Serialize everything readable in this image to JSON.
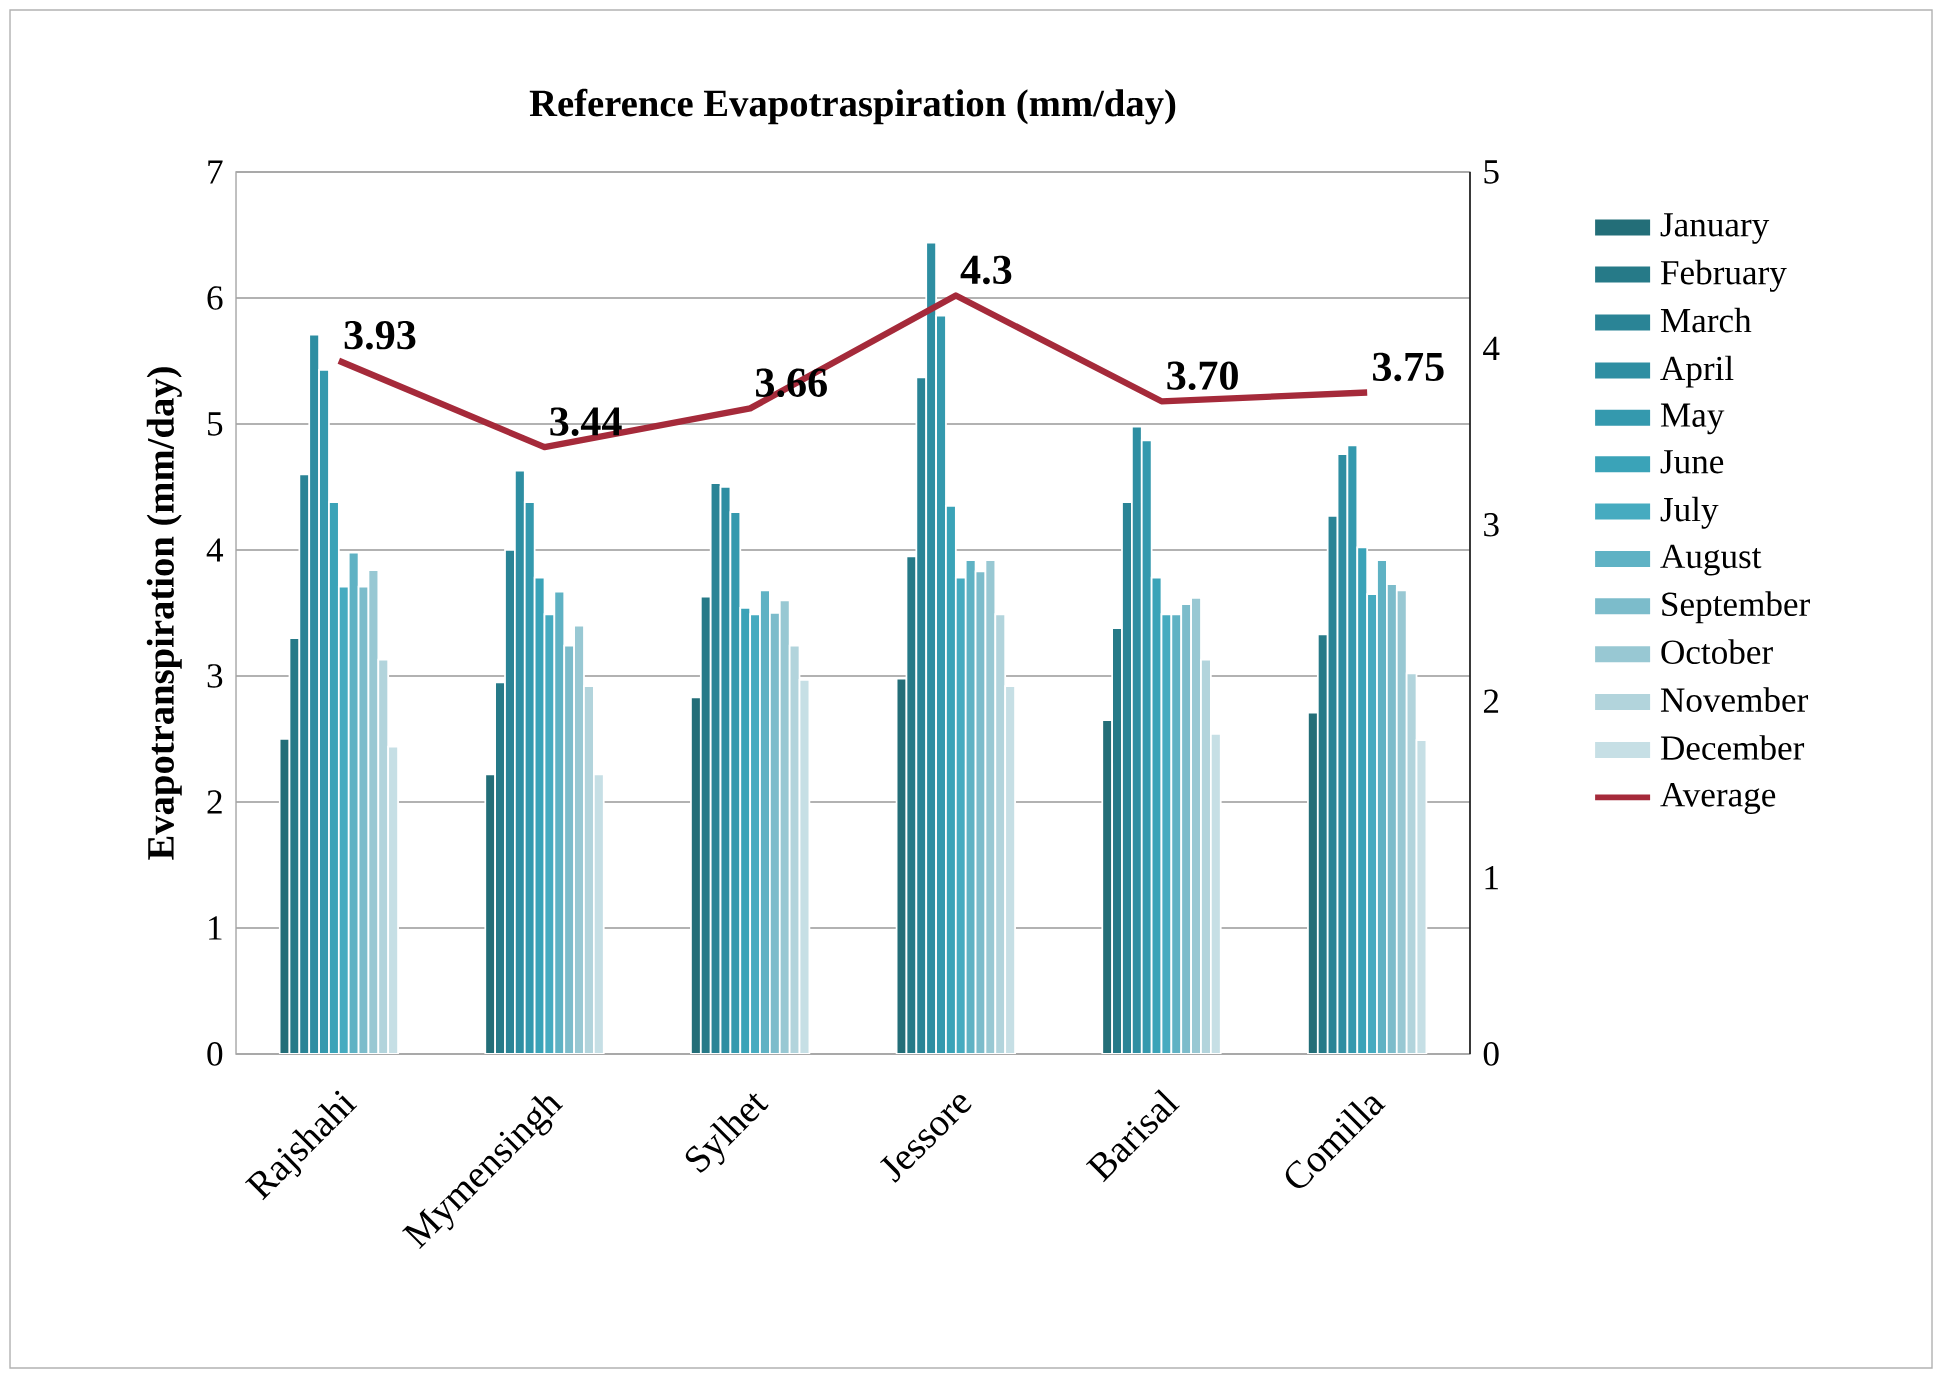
{
  "chart_data": {
    "type": "bar",
    "title": "Reference Evapotraspiration (mm/day)",
    "ylabel": "Evapotranspiration (mm/day)",
    "categories": [
      "Rajshahi",
      "Mymensingh",
      "Sylhet",
      "Jessore",
      "Barisal",
      "Comilla"
    ],
    "ylim": [
      0,
      7
    ],
    "yticks": [
      0,
      1,
      2,
      3,
      4,
      5,
      6,
      7
    ],
    "y2lim": [
      0,
      5
    ],
    "y2ticks": [
      0,
      1,
      2,
      3,
      4,
      5
    ],
    "grid": "y",
    "legend": "right",
    "series": [
      {
        "name": "January",
        "color": "#236e78",
        "values": [
          2.5,
          2.22,
          2.83,
          2.98,
          2.65,
          2.71
        ]
      },
      {
        "name": "February",
        "color": "#267a88",
        "values": [
          3.3,
          2.95,
          3.63,
          3.95,
          3.38,
          3.33
        ]
      },
      {
        "name": "March",
        "color": "#2a8496",
        "values": [
          4.6,
          4.0,
          4.53,
          5.37,
          4.38,
          4.27
        ]
      },
      {
        "name": "April",
        "color": "#2e8ea2",
        "values": [
          5.71,
          4.63,
          4.5,
          6.44,
          4.98,
          4.76
        ]
      },
      {
        "name": "May",
        "color": "#3499ae",
        "values": [
          5.43,
          4.38,
          4.3,
          5.86,
          4.87,
          4.83
        ]
      },
      {
        "name": "June",
        "color": "#3aa3b8",
        "values": [
          4.38,
          3.78,
          3.54,
          4.35,
          3.78,
          4.02
        ]
      },
      {
        "name": "July",
        "color": "#46abc0",
        "values": [
          3.71,
          3.49,
          3.49,
          3.78,
          3.49,
          3.65
        ]
      },
      {
        "name": "August",
        "color": "#5fb2c4",
        "values": [
          3.98,
          3.67,
          3.68,
          3.92,
          3.49,
          3.92
        ]
      },
      {
        "name": "September",
        "color": "#7cbccb",
        "values": [
          3.71,
          3.24,
          3.5,
          3.83,
          3.57,
          3.73
        ]
      },
      {
        "name": "October",
        "color": "#98c8d3",
        "values": [
          3.84,
          3.4,
          3.6,
          3.92,
          3.62,
          3.68
        ]
      },
      {
        "name": "November",
        "color": "#b2d4dc",
        "values": [
          3.13,
          2.92,
          3.24,
          3.49,
          3.13,
          3.02
        ]
      },
      {
        "name": "December",
        "color": "#c6dfe5",
        "values": [
          2.44,
          2.22,
          2.97,
          2.92,
          2.54,
          2.49
        ]
      },
      {
        "name": "Average",
        "type": "line",
        "axis": "y2",
        "color": "#a52a3a",
        "values": [
          3.93,
          3.44,
          3.66,
          4.3,
          3.7,
          3.75
        ],
        "value_labels": [
          "3.93",
          "3.44",
          "3.66",
          "4.3",
          "3.70",
          "3.75"
        ]
      }
    ]
  }
}
